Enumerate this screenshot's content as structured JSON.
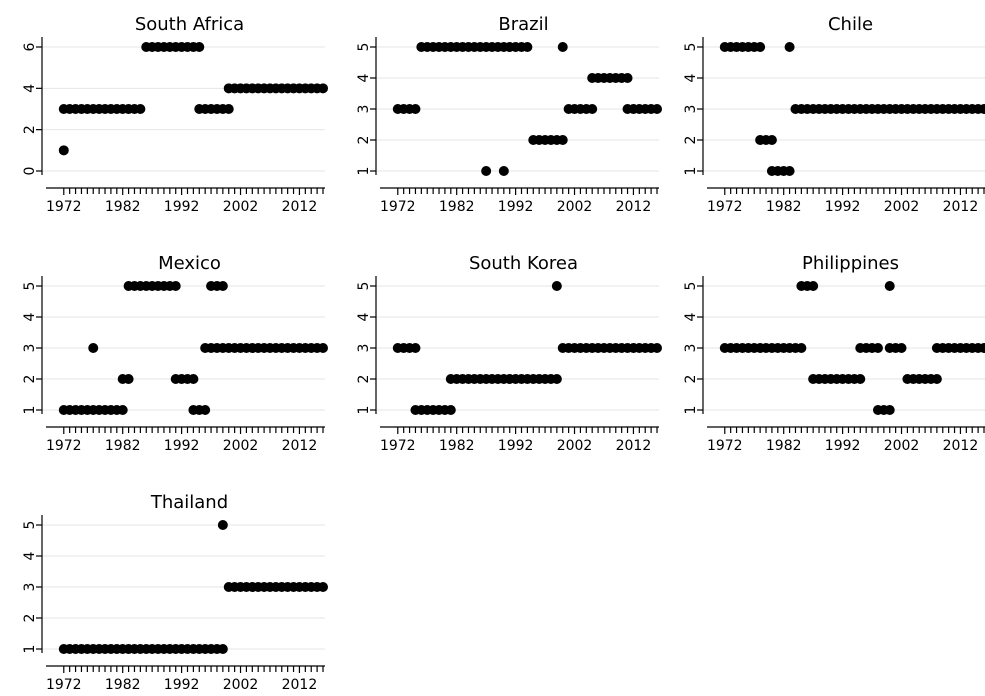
{
  "chart_data": [
    {
      "type": "scatter",
      "title": "South Africa",
      "xlim": [
        1970,
        2016
      ],
      "xticks": [
        1972,
        1982,
        1992,
        2002,
        2012
      ],
      "ylim": [
        0,
        6
      ],
      "yticks": [
        0,
        2,
        4,
        6
      ],
      "grid": true,
      "segments": [
        {
          "y": 1,
          "x": [
            1972,
            1972
          ]
        },
        {
          "y": 3,
          "x": [
            1972,
            1985
          ]
        },
        {
          "y": 6,
          "x": [
            1986,
            1995
          ]
        },
        {
          "y": 3,
          "x": [
            1995,
            2000
          ]
        },
        {
          "y": 4,
          "x": [
            2000,
            2016
          ]
        }
      ]
    },
    {
      "type": "scatter",
      "title": "Brazil",
      "xlim": [
        1970,
        2016
      ],
      "xticks": [
        1972,
        1982,
        1992,
        2002,
        2012
      ],
      "ylim": [
        1,
        5
      ],
      "yticks": [
        1,
        2,
        3,
        4,
        5
      ],
      "grid": true,
      "segments": [
        {
          "y": 3,
          "x": [
            1972,
            1975
          ]
        },
        {
          "y": 5,
          "x": [
            1976,
            1994
          ]
        },
        {
          "y": 1,
          "x": [
            1987,
            1987
          ]
        },
        {
          "y": 1,
          "x": [
            1990,
            1990
          ]
        },
        {
          "y": 2,
          "x": [
            1995,
            2000
          ]
        },
        {
          "y": 5,
          "x": [
            2000,
            2000
          ]
        },
        {
          "y": 3,
          "x": [
            2001,
            2005
          ]
        },
        {
          "y": 4,
          "x": [
            2005,
            2011
          ]
        },
        {
          "y": 3,
          "x": [
            2011,
            2016
          ]
        }
      ]
    },
    {
      "type": "scatter",
      "title": "Chile",
      "xlim": [
        1970,
        2016
      ],
      "xticks": [
        1972,
        1982,
        1992,
        2002,
        2012
      ],
      "ylim": [
        1,
        5
      ],
      "yticks": [
        1,
        2,
        3,
        4,
        5
      ],
      "grid": true,
      "segments": [
        {
          "y": 5,
          "x": [
            1972,
            1978
          ]
        },
        {
          "y": 2,
          "x": [
            1978,
            1980
          ]
        },
        {
          "y": 1,
          "x": [
            1980,
            1983
          ]
        },
        {
          "y": 5,
          "x": [
            1983,
            1983
          ]
        },
        {
          "y": 3,
          "x": [
            1984,
            2016
          ]
        }
      ]
    },
    {
      "type": "scatter",
      "title": "Mexico",
      "xlim": [
        1970,
        2016
      ],
      "xticks": [
        1972,
        1982,
        1992,
        2002,
        2012
      ],
      "ylim": [
        1,
        5
      ],
      "yticks": [
        1,
        2,
        3,
        4,
        5
      ],
      "grid": true,
      "segments": [
        {
          "y": 1,
          "x": [
            1972,
            1982
          ]
        },
        {
          "y": 3,
          "x": [
            1977,
            1977
          ]
        },
        {
          "y": 2,
          "x": [
            1982,
            1983
          ]
        },
        {
          "y": 5,
          "x": [
            1983,
            1991
          ]
        },
        {
          "y": 2,
          "x": [
            1991,
            1994
          ]
        },
        {
          "y": 1,
          "x": [
            1994,
            1996
          ]
        },
        {
          "y": 3,
          "x": [
            1996,
            1997
          ]
        },
        {
          "y": 5,
          "x": [
            1997,
            1999
          ]
        },
        {
          "y": 3,
          "x": [
            1998,
            2016
          ]
        }
      ]
    },
    {
      "type": "scatter",
      "title": "South Korea",
      "xlim": [
        1970,
        2016
      ],
      "xticks": [
        1972,
        1982,
        1992,
        2002,
        2012
      ],
      "ylim": [
        1,
        5
      ],
      "yticks": [
        1,
        2,
        3,
        4,
        5
      ],
      "grid": true,
      "segments": [
        {
          "y": 3,
          "x": [
            1972,
            1975
          ]
        },
        {
          "y": 1,
          "x": [
            1975,
            1981
          ]
        },
        {
          "y": 2,
          "x": [
            1981,
            1999
          ]
        },
        {
          "y": 5,
          "x": [
            1999,
            1999
          ]
        },
        {
          "y": 3,
          "x": [
            2000,
            2016
          ]
        }
      ]
    },
    {
      "type": "scatter",
      "title": "Philippines",
      "xlim": [
        1970,
        2016
      ],
      "xticks": [
        1972,
        1982,
        1992,
        2002,
        2012
      ],
      "ylim": [
        1,
        5
      ],
      "yticks": [
        1,
        2,
        3,
        4,
        5
      ],
      "grid": true,
      "segments": [
        {
          "y": 3,
          "x": [
            1972,
            1985
          ]
        },
        {
          "y": 5,
          "x": [
            1985,
            1987
          ]
        },
        {
          "y": 2,
          "x": [
            1987,
            1995
          ]
        },
        {
          "y": 3,
          "x": [
            1995,
            1998
          ]
        },
        {
          "y": 1,
          "x": [
            1998,
            2000
          ]
        },
        {
          "y": 5,
          "x": [
            2000,
            2000
          ]
        },
        {
          "y": 3,
          "x": [
            2000,
            2002
          ]
        },
        {
          "y": 2,
          "x": [
            2003,
            2008
          ]
        },
        {
          "y": 3,
          "x": [
            2008,
            2016
          ]
        }
      ]
    },
    {
      "type": "scatter",
      "title": "Thailand",
      "xlim": [
        1970,
        2016
      ],
      "xticks": [
        1972,
        1982,
        1992,
        2002,
        2012
      ],
      "ylim": [
        1,
        5
      ],
      "yticks": [
        1,
        2,
        3,
        4,
        5
      ],
      "grid": true,
      "segments": [
        {
          "y": 1,
          "x": [
            1972,
            1999
          ]
        },
        {
          "y": 5,
          "x": [
            1999,
            1999
          ]
        },
        {
          "y": 3,
          "x": [
            2000,
            2016
          ]
        }
      ]
    }
  ]
}
